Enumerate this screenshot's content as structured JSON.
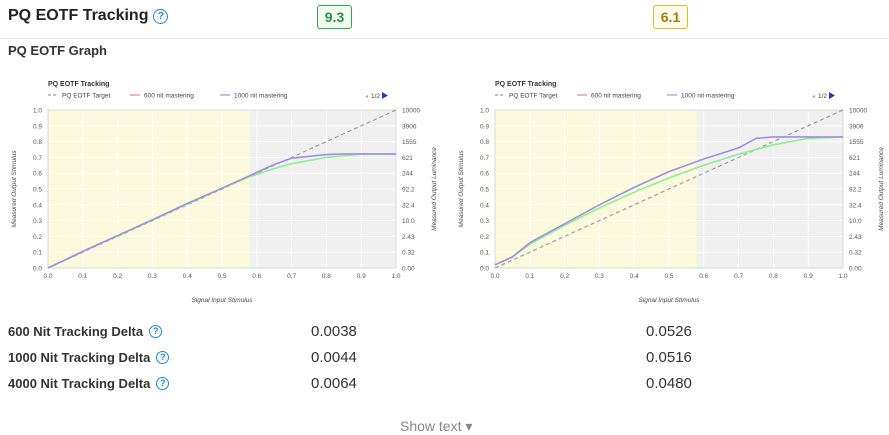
{
  "header": {
    "title": "PQ EOTF Tracking",
    "scores": [
      "9.3",
      "6.1"
    ]
  },
  "section": {
    "subtitle": "PQ EOTF Graph"
  },
  "deltas": [
    {
      "label": "600 Nit Tracking Delta",
      "values": [
        "0.0038",
        "0.0526"
      ]
    },
    {
      "label": "1000 Nit Tracking Delta",
      "values": [
        "0.0044",
        "0.0516"
      ]
    },
    {
      "label": "4000 Nit Tracking Delta",
      "values": [
        "0.0064",
        "0.0480"
      ]
    }
  ],
  "footer": {
    "show_text": "Show text ▾"
  },
  "colors": {
    "target": "#9e9e9e",
    "nit600": "#90ee90",
    "nit1000": "#9f8fe0",
    "legend600": "#f08080",
    "good_score": "#2fa84f",
    "mid_score": "#e4b731"
  },
  "chart_data": [
    {
      "type": "line",
      "title": "PQ EOTF Tracking",
      "xlabel": "Signal Input Stimulus",
      "ylabel": "Measured Output Stimulus",
      "ylabel_right": "Measured Output Luminance",
      "xlim": [
        0,
        1
      ],
      "ylim": [
        0,
        1
      ],
      "x_ticks": [
        "0.0",
        "0.1",
        "0.2",
        "0.3",
        "0.4",
        "0.5",
        "0.6",
        "0.7",
        "0.8",
        "0.9",
        "1.0"
      ],
      "y_ticks": [
        "0.0",
        "0.1",
        "0.2",
        "0.3",
        "0.4",
        "0.5",
        "0.6",
        "0.7",
        "0.8",
        "0.9",
        "1.0"
      ],
      "y_right_ticks": [
        "0.00",
        "0.32",
        "2.43",
        "10.0",
        "32.4",
        "92.2",
        "244",
        "621",
        "1555",
        "3906",
        "10000"
      ],
      "legend": {
        "placement": "top-left",
        "page": "1/2"
      },
      "highlight_range": [
        0,
        0.58
      ],
      "series": [
        {
          "name": "PQ EOTF Target",
          "style": "dashed",
          "x": [
            0,
            1
          ],
          "y": [
            0,
            1
          ]
        },
        {
          "name": "600 nit mastering",
          "x": [
            0,
            0.1,
            0.2,
            0.3,
            0.4,
            0.5,
            0.58,
            0.65,
            0.7,
            0.8,
            0.9,
            1.0
          ],
          "y": [
            0,
            0.105,
            0.205,
            0.305,
            0.405,
            0.505,
            0.578,
            0.63,
            0.66,
            0.7,
            0.72,
            0.72
          ]
        },
        {
          "name": "1000 nit mastering",
          "x": [
            0,
            0.1,
            0.2,
            0.3,
            0.4,
            0.5,
            0.6,
            0.65,
            0.7,
            0.8,
            0.85,
            0.9,
            1.0
          ],
          "y": [
            0,
            0.105,
            0.205,
            0.305,
            0.408,
            0.505,
            0.605,
            0.655,
            0.695,
            0.718,
            0.722,
            0.722,
            0.722
          ]
        }
      ]
    },
    {
      "type": "line",
      "title": "PQ EOTF Tracking",
      "xlabel": "Signal Input Stimulus",
      "ylabel": "Measured Output Stimulus",
      "ylabel_right": "Measured Output Luminance",
      "xlim": [
        0,
        1
      ],
      "ylim": [
        0,
        1
      ],
      "x_ticks": [
        "0.0",
        "0.1",
        "0.2",
        "0.3",
        "0.4",
        "0.5",
        "0.6",
        "0.7",
        "0.8",
        "0.9",
        "1.0"
      ],
      "y_ticks": [
        "0.0",
        "0.1",
        "0.2",
        "0.3",
        "0.4",
        "0.5",
        "0.6",
        "0.7",
        "0.8",
        "0.9",
        "1.0"
      ],
      "y_right_ticks": [
        "0.00",
        "0.32",
        "2.43",
        "10.0",
        "32.4",
        "92.2",
        "244",
        "621",
        "1555",
        "3906",
        "10000"
      ],
      "legend": {
        "placement": "top-left",
        "page": "1/2"
      },
      "highlight_range": [
        0,
        0.58
      ],
      "series": [
        {
          "name": "PQ EOTF Target",
          "style": "dashed",
          "x": [
            0,
            1
          ],
          "y": [
            0,
            1
          ]
        },
        {
          "name": "600 nit mastering",
          "x": [
            0,
            0.05,
            0.1,
            0.2,
            0.3,
            0.4,
            0.5,
            0.6,
            0.7,
            0.8,
            0.9,
            1.0
          ],
          "y": [
            0.02,
            0.07,
            0.15,
            0.27,
            0.38,
            0.48,
            0.57,
            0.65,
            0.72,
            0.78,
            0.82,
            0.83
          ]
        },
        {
          "name": "1000 nit mastering",
          "x": [
            0,
            0.05,
            0.1,
            0.2,
            0.3,
            0.4,
            0.5,
            0.6,
            0.7,
            0.75,
            0.8,
            0.9,
            1.0
          ],
          "y": [
            0.02,
            0.07,
            0.16,
            0.28,
            0.4,
            0.51,
            0.61,
            0.69,
            0.76,
            0.82,
            0.83,
            0.83,
            0.83
          ]
        }
      ]
    }
  ]
}
